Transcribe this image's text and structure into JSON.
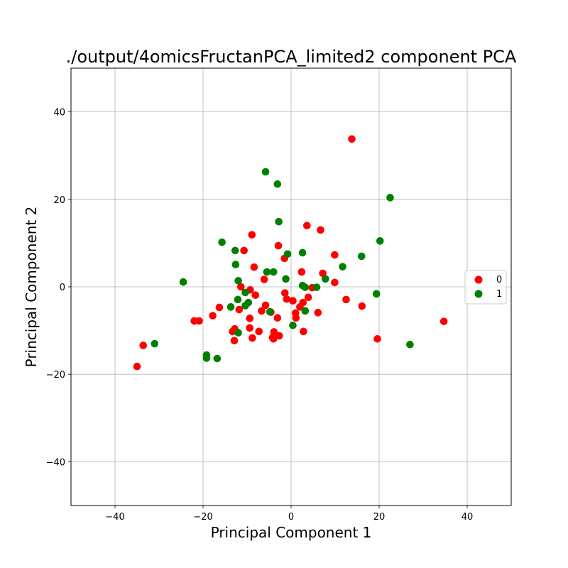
{
  "chart_data": {
    "type": "scatter",
    "title": "./output/4omicsFructanPCA_limited2 component PCA",
    "xlabel": "Principal Component 1",
    "ylabel": "Principal Component 2",
    "xlim": [
      -50,
      50
    ],
    "ylim": [
      -50,
      50
    ],
    "xticks": [
      -40,
      -20,
      0,
      20,
      40
    ],
    "yticks": [
      -40,
      -20,
      0,
      20,
      40
    ],
    "grid": true,
    "legend": "center-right",
    "series": [
      {
        "name": "0",
        "color": "#ff0000",
        "points": [
          [
            13.8,
            33.8
          ],
          [
            3.6,
            14.0
          ],
          [
            6.7,
            13.0
          ],
          [
            -8.9,
            11.9
          ],
          [
            -10.7,
            8.3
          ],
          [
            -2.9,
            9.4
          ],
          [
            9.9,
            7.3
          ],
          [
            -1.5,
            6.5
          ],
          [
            -8.4,
            4.5
          ],
          [
            2.4,
            3.4
          ],
          [
            7.2,
            3.1
          ],
          [
            -6.1,
            1.7
          ],
          [
            9.9,
            1.0
          ],
          [
            -11.4,
            0.0
          ],
          [
            4.8,
            -0.2
          ],
          [
            -9.3,
            -0.7
          ],
          [
            -1.4,
            -1.4
          ],
          [
            -8.1,
            -1.9
          ],
          [
            3.9,
            -2.4
          ],
          [
            -1.0,
            -2.8
          ],
          [
            12.5,
            -2.9
          ],
          [
            0.4,
            -3.2
          ],
          [
            2.7,
            -3.6
          ],
          [
            -5.8,
            -4.2
          ],
          [
            2.0,
            -4.6
          ],
          [
            16.1,
            -4.4
          ],
          [
            -16.3,
            -4.7
          ],
          [
            -11.8,
            -5.2
          ],
          [
            -6.7,
            -5.5
          ],
          [
            -4.6,
            -5.8
          ],
          [
            1.0,
            -6.0
          ],
          [
            6.1,
            -5.9
          ],
          [
            -17.8,
            -6.6
          ],
          [
            1.1,
            -7.1
          ],
          [
            -3.1,
            -7.1
          ],
          [
            -9.4,
            -7.2
          ],
          [
            -22.0,
            -7.8
          ],
          [
            -20.9,
            -7.8
          ],
          [
            34.7,
            -7.9
          ],
          [
            -9.4,
            -9.4
          ],
          [
            -12.8,
            -9.6
          ],
          [
            -13.3,
            -10.2
          ],
          [
            -3.9,
            -10.3
          ],
          [
            -7.3,
            -10.2
          ],
          [
            2.8,
            -10.2
          ],
          [
            -3.8,
            -11.1
          ],
          [
            -2.7,
            -11.2
          ],
          [
            -4.2,
            -11.6
          ],
          [
            -8.8,
            -11.7
          ],
          [
            -4.0,
            -11.9
          ],
          [
            19.6,
            -11.9
          ],
          [
            -12.9,
            -12.3
          ],
          [
            -33.6,
            -13.4
          ],
          [
            -35.0,
            -18.2
          ]
        ]
      },
      {
        "name": "1",
        "color": "#008000",
        "points": [
          [
            -5.8,
            26.3
          ],
          [
            -3.1,
            23.5
          ],
          [
            22.5,
            20.4
          ],
          [
            -2.8,
            14.9
          ],
          [
            20.2,
            10.5
          ],
          [
            -15.7,
            10.2
          ],
          [
            -12.7,
            8.3
          ],
          [
            -0.8,
            7.5
          ],
          [
            2.6,
            7.8
          ],
          [
            16.0,
            7.0
          ],
          [
            -12.6,
            5.1
          ],
          [
            11.7,
            4.6
          ],
          [
            -5.5,
            3.4
          ],
          [
            -4.0,
            3.4
          ],
          [
            -1.2,
            1.8
          ],
          [
            7.8,
            1.8
          ],
          [
            -24.5,
            1.1
          ],
          [
            -12.0,
            1.4
          ],
          [
            2.6,
            0.3
          ],
          [
            3.2,
            -0.1
          ],
          [
            5.8,
            -0.1
          ],
          [
            -10.4,
            -1.3
          ],
          [
            19.4,
            -1.6
          ],
          [
            -9.7,
            -3.6
          ],
          [
            -12.1,
            -2.9
          ],
          [
            -10.4,
            -4.3
          ],
          [
            -13.7,
            -4.6
          ],
          [
            3.2,
            -5.5
          ],
          [
            -4.8,
            -5.7
          ],
          [
            0.4,
            -8.8
          ],
          [
            -12.0,
            -10.5
          ],
          [
            -31.0,
            -13.0
          ],
          [
            27.0,
            -13.2
          ],
          [
            -19.2,
            -15.6
          ],
          [
            -19.2,
            -16.3
          ],
          [
            -16.8,
            -16.4
          ]
        ]
      }
    ]
  }
}
